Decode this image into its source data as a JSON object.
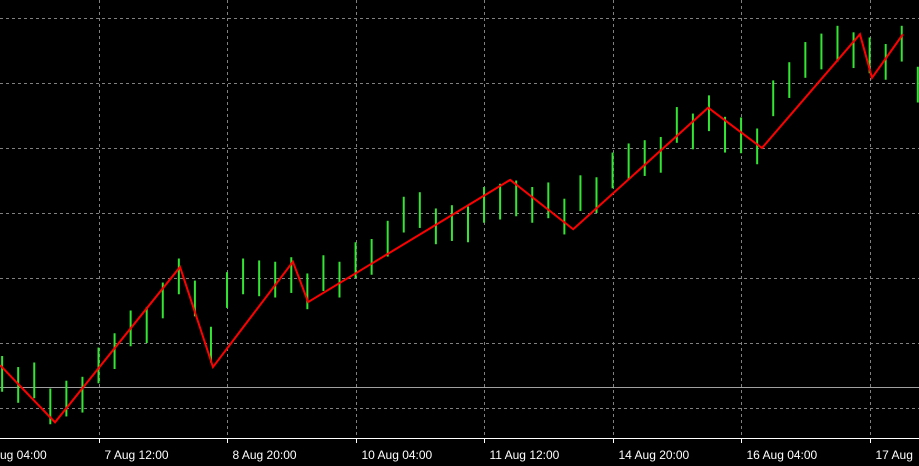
{
  "chart_data": {
    "type": "ohlc",
    "x": [
      8,
      12,
      16,
      20,
      24,
      28,
      32,
      36,
      40,
      44,
      48,
      52,
      56,
      60,
      64,
      68,
      72,
      76,
      80,
      84,
      88,
      92,
      96,
      100,
      104,
      108,
      112,
      116,
      120,
      124,
      128,
      132,
      136,
      140,
      144,
      148,
      152,
      156,
      160,
      164,
      168,
      172,
      176,
      180,
      184,
      188,
      192,
      196,
      200,
      204,
      208,
      212,
      216,
      220,
      224,
      228,
      232,
      236
    ],
    "high": [
      0.8,
      0.63,
      0.7,
      0.3,
      0.42,
      0.48,
      0.93,
      1.15,
      1.5,
      1.55,
      1.93,
      2.3,
      1.96,
      1.25,
      2.09,
      2.3,
      2.27,
      2.25,
      2.32,
      2.07,
      2.35,
      2.25,
      2.55,
      2.6,
      2.88,
      3.25,
      3.32,
      3.07,
      3.12,
      3.1,
      3.4,
      3.45,
      3.5,
      3.4,
      3.47,
      3.22,
      3.58,
      3.55,
      3.93,
      4.07,
      4.12,
      4.17,
      4.63,
      4.53,
      4.81,
      4.48,
      4.47,
      4.3,
      5.04,
      5.32,
      5.63,
      5.76,
      5.88,
      5.78,
      5.7,
      5.6,
      5.88,
      5.25
    ],
    "low": [
      0.25,
      0.08,
      0.15,
      -0.25,
      -0.13,
      -0.07,
      0.38,
      0.6,
      0.95,
      1.0,
      1.38,
      1.75,
      1.41,
      0.7,
      1.54,
      1.75,
      1.72,
      1.7,
      1.77,
      1.52,
      1.8,
      1.7,
      2.0,
      2.05,
      2.33,
      2.7,
      2.77,
      2.52,
      2.57,
      2.55,
      2.85,
      2.9,
      2.95,
      2.85,
      2.92,
      2.67,
      3.03,
      3.0,
      3.38,
      3.52,
      3.57,
      3.62,
      4.08,
      3.98,
      4.26,
      3.93,
      3.92,
      3.75,
      4.49,
      4.77,
      5.08,
      5.21,
      5.33,
      5.23,
      5.15,
      5.05,
      5.33,
      4.7
    ],
    "color": "#32e632",
    "zigzag": {
      "x": [
        7.47,
        21.17,
        52.3,
        60.5,
        80.4,
        84.2,
        134.5,
        150.2,
        183.8,
        197.2,
        221.6,
        224.6,
        232.3
      ],
      "values": [
        0.66,
        -0.22,
        2.17,
        0.63,
        2.25,
        1.63,
        3.51,
        2.75,
        4.62,
        4.0,
        5.75,
        5.08,
        5.75
      ],
      "color": "#ff0000"
    },
    "bid_line": 0.32,
    "bid_color": "#a0a0a0",
    "xlim": [
      7.47,
      236.3
    ],
    "ylim": [
      -0.4615,
      6.277
    ],
    "xticks": [
      {
        "value": 0,
        "label": "ug 04:00"
      },
      {
        "value": 32,
        "label": "7 Aug 12:00"
      },
      {
        "value": 64,
        "label": "8 Aug 20:00"
      },
      {
        "value": 96,
        "label": "10 Aug 04:00"
      },
      {
        "value": 128,
        "label": "11 Aug 12:00"
      },
      {
        "value": 160,
        "label": "14 Aug 20:00"
      },
      {
        "value": 192,
        "label": "16 Aug 04:00"
      },
      {
        "value": 224,
        "label": "17 Aug"
      }
    ],
    "ygrid": [
      0,
      1,
      2,
      3,
      4,
      5,
      6
    ],
    "grid": true
  }
}
